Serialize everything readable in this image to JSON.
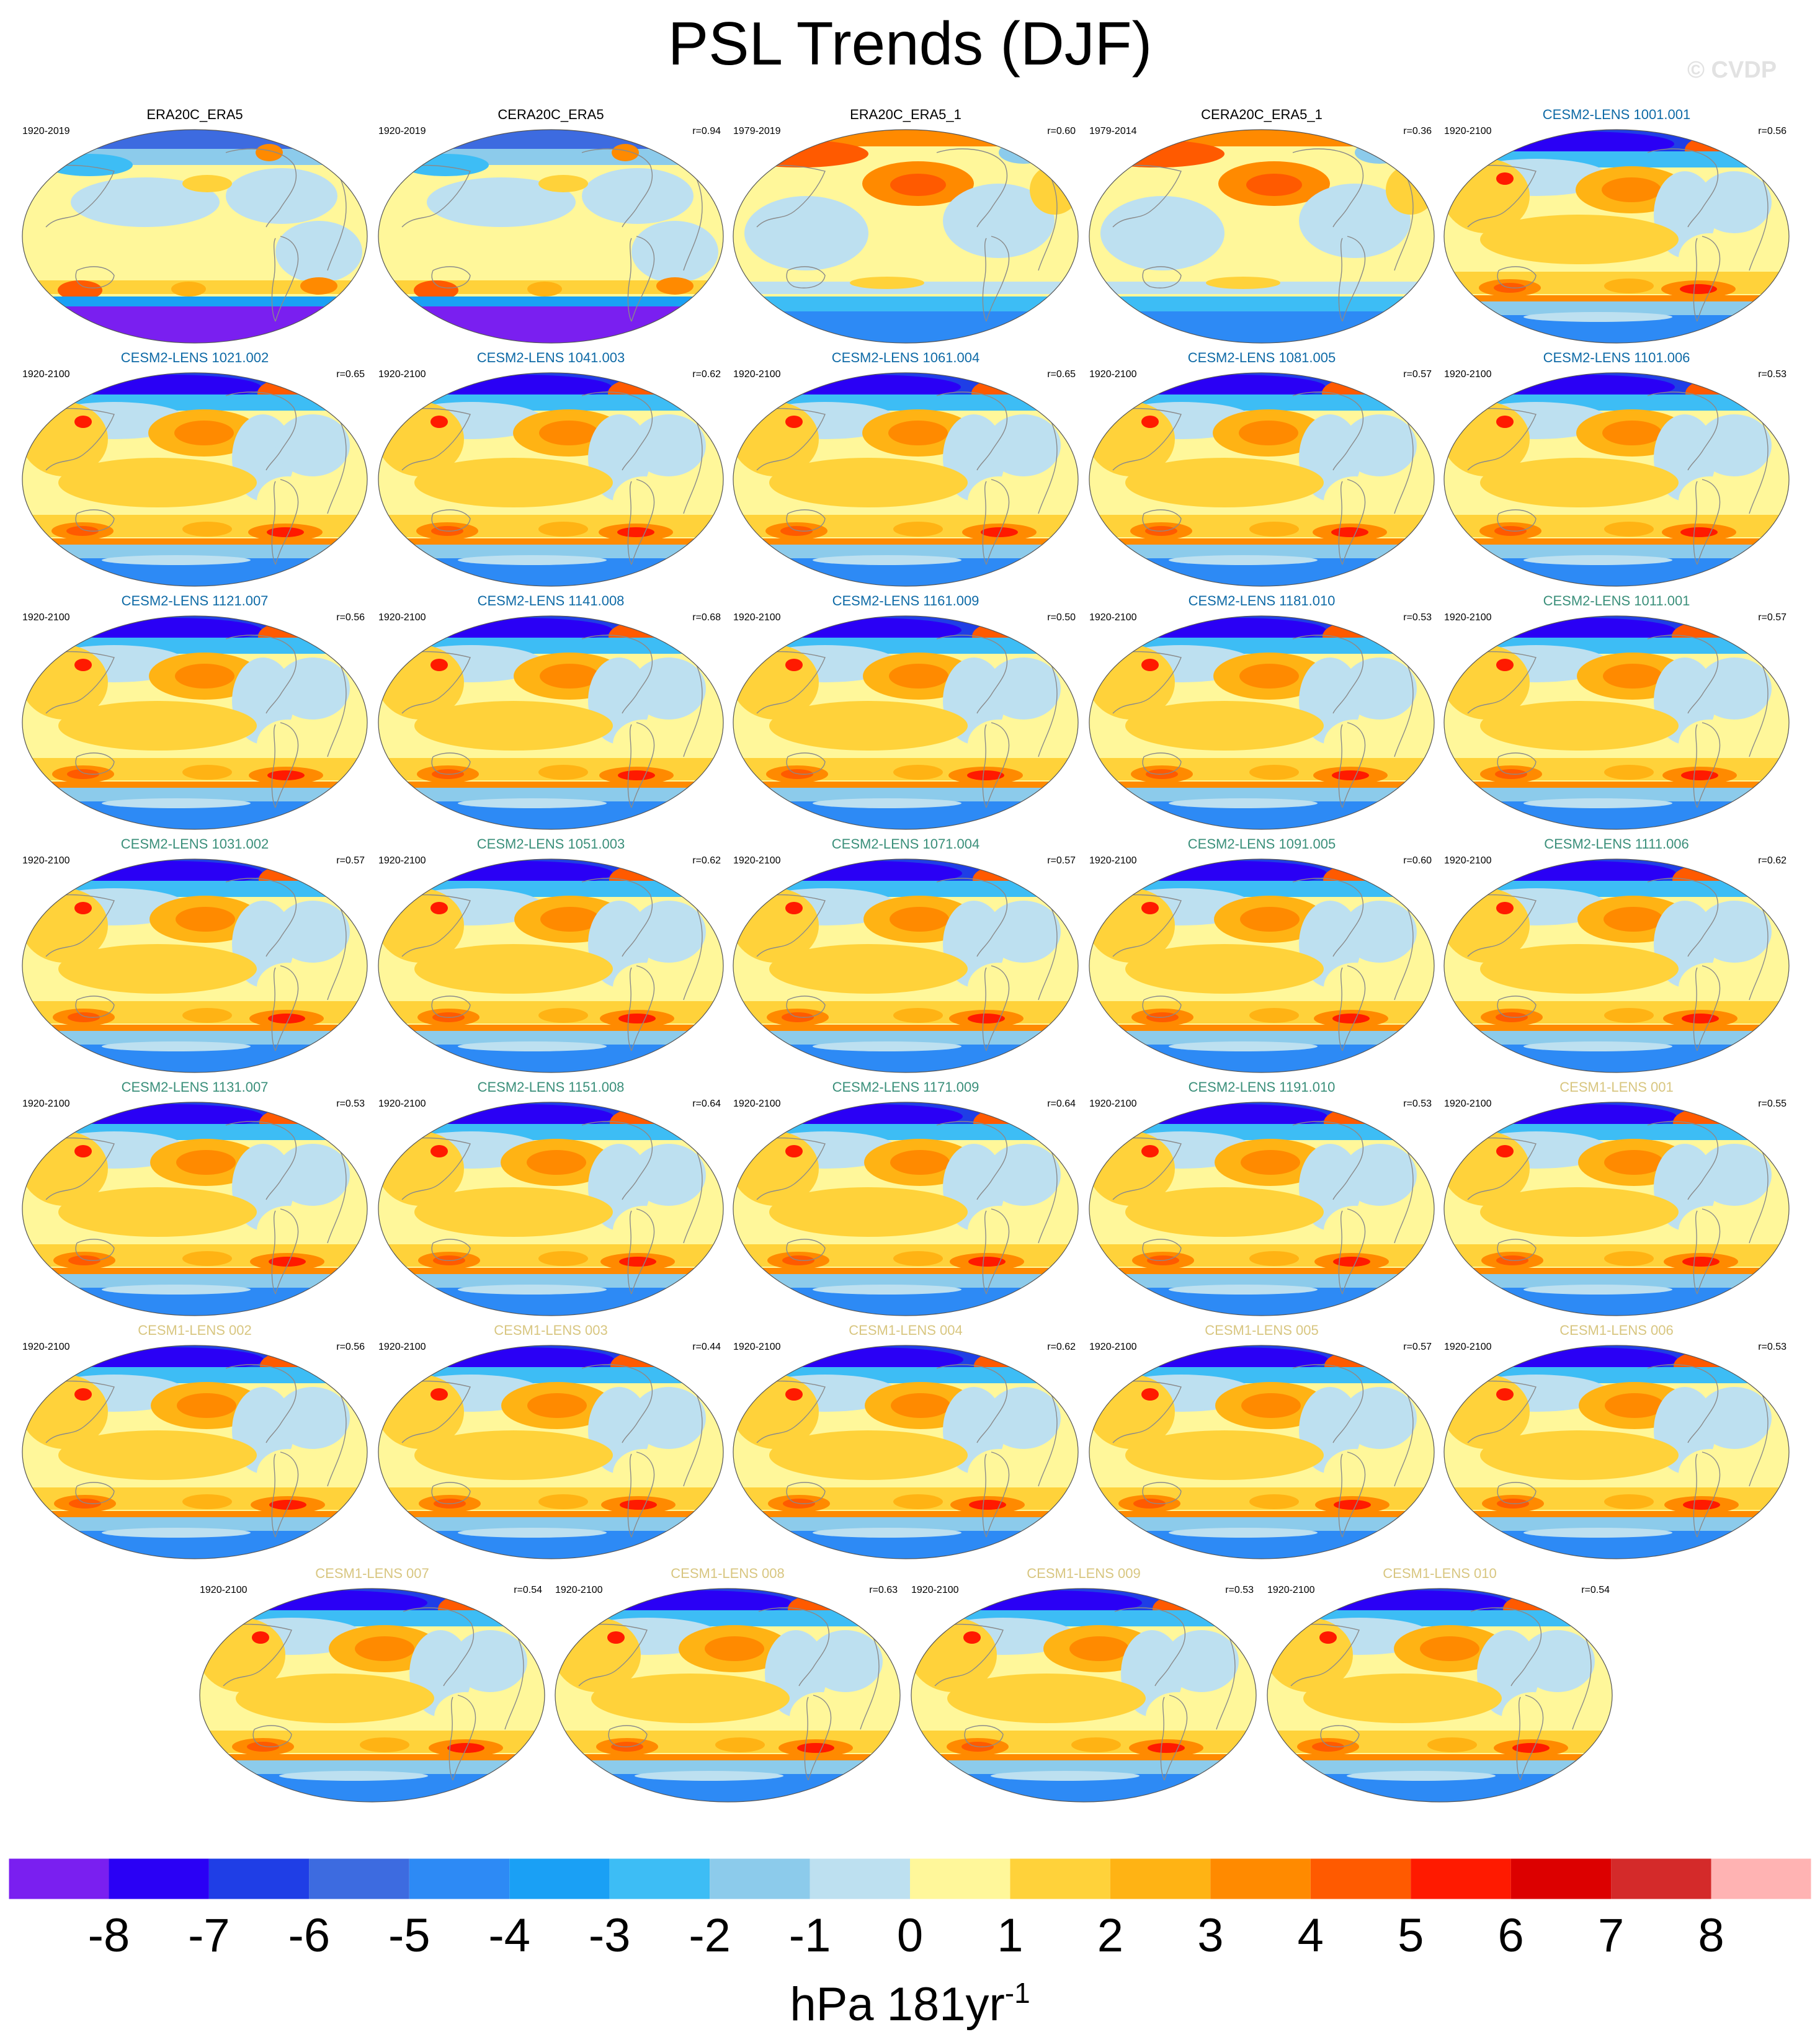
{
  "title": "PSL Trends (DJF)",
  "watermark": "© CVDP",
  "colors": {
    "obs_title": "#000000",
    "cesm2_smbb": "#0e6aa6",
    "cesm2_cmip6": "#3a8f7a",
    "cesm1": "#d8c680",
    "ocean_base": "#fff79a",
    "coastline": "#8a8a8a"
  },
  "panels": [
    {
      "title": "ERA20C_ERA5",
      "period": "1920-2019",
      "r": "",
      "group": "obs",
      "style": "obs_a"
    },
    {
      "title": "CERA20C_ERA5",
      "period": "1920-2019",
      "r": "r=0.94",
      "group": "obs",
      "style": "obs_a"
    },
    {
      "title": "ERA20C_ERA5_1",
      "period": "1979-2019",
      "r": "r=0.60",
      "group": "obs",
      "style": "obs_b"
    },
    {
      "title": "CERA20C_ERA5_1",
      "period": "1979-2014",
      "r": "r=0.36",
      "group": "obs",
      "style": "obs_b"
    },
    {
      "title": "CESM2-LENS 1001.001",
      "period": "1920-2100",
      "r": "r=0.56",
      "group": "cesm2_smbb",
      "style": "model"
    },
    {
      "title": "CESM2-LENS 1021.002",
      "period": "1920-2100",
      "r": "r=0.65",
      "group": "cesm2_smbb",
      "style": "model"
    },
    {
      "title": "CESM2-LENS 1041.003",
      "period": "1920-2100",
      "r": "r=0.62",
      "group": "cesm2_smbb",
      "style": "model"
    },
    {
      "title": "CESM2-LENS 1061.004",
      "period": "1920-2100",
      "r": "r=0.65",
      "group": "cesm2_smbb",
      "style": "model"
    },
    {
      "title": "CESM2-LENS 1081.005",
      "period": "1920-2100",
      "r": "r=0.57",
      "group": "cesm2_smbb",
      "style": "model"
    },
    {
      "title": "CESM2-LENS 1101.006",
      "period": "1920-2100",
      "r": "r=0.53",
      "group": "cesm2_smbb",
      "style": "model"
    },
    {
      "title": "CESM2-LENS 1121.007",
      "period": "1920-2100",
      "r": "r=0.56",
      "group": "cesm2_smbb",
      "style": "model"
    },
    {
      "title": "CESM2-LENS 1141.008",
      "period": "1920-2100",
      "r": "r=0.68",
      "group": "cesm2_smbb",
      "style": "model"
    },
    {
      "title": "CESM2-LENS 1161.009",
      "period": "1920-2100",
      "r": "r=0.50",
      "group": "cesm2_smbb",
      "style": "model"
    },
    {
      "title": "CESM2-LENS 1181.010",
      "period": "1920-2100",
      "r": "r=0.53",
      "group": "cesm2_smbb",
      "style": "model"
    },
    {
      "title": "CESM2-LENS 1011.001",
      "period": "1920-2100",
      "r": "r=0.57",
      "group": "cesm2_cmip6",
      "style": "model"
    },
    {
      "title": "CESM2-LENS 1031.002",
      "period": "1920-2100",
      "r": "r=0.57",
      "group": "cesm2_cmip6",
      "style": "model"
    },
    {
      "title": "CESM2-LENS 1051.003",
      "period": "1920-2100",
      "r": "r=0.62",
      "group": "cesm2_cmip6",
      "style": "model"
    },
    {
      "title": "CESM2-LENS 1071.004",
      "period": "1920-2100",
      "r": "r=0.57",
      "group": "cesm2_cmip6",
      "style": "model"
    },
    {
      "title": "CESM2-LENS 1091.005",
      "period": "1920-2100",
      "r": "r=0.60",
      "group": "cesm2_cmip6",
      "style": "model"
    },
    {
      "title": "CESM2-LENS 1111.006",
      "period": "1920-2100",
      "r": "r=0.62",
      "group": "cesm2_cmip6",
      "style": "model"
    },
    {
      "title": "CESM2-LENS 1131.007",
      "period": "1920-2100",
      "r": "r=0.53",
      "group": "cesm2_cmip6",
      "style": "model"
    },
    {
      "title": "CESM2-LENS 1151.008",
      "period": "1920-2100",
      "r": "r=0.64",
      "group": "cesm2_cmip6",
      "style": "model"
    },
    {
      "title": "CESM2-LENS 1171.009",
      "period": "1920-2100",
      "r": "r=0.64",
      "group": "cesm2_cmip6",
      "style": "model"
    },
    {
      "title": "CESM2-LENS 1191.010",
      "period": "1920-2100",
      "r": "r=0.53",
      "group": "cesm2_cmip6",
      "style": "model"
    },
    {
      "title": "CESM1-LENS 001",
      "period": "1920-2100",
      "r": "r=0.55",
      "group": "cesm1",
      "style": "model"
    },
    {
      "title": "CESM1-LENS 002",
      "period": "1920-2100",
      "r": "r=0.56",
      "group": "cesm1",
      "style": "model"
    },
    {
      "title": "CESM1-LENS 003",
      "period": "1920-2100",
      "r": "r=0.44",
      "group": "cesm1",
      "style": "model"
    },
    {
      "title": "CESM1-LENS 004",
      "period": "1920-2100",
      "r": "r=0.62",
      "group": "cesm1",
      "style": "model"
    },
    {
      "title": "CESM1-LENS 005",
      "period": "1920-2100",
      "r": "r=0.57",
      "group": "cesm1",
      "style": "model"
    },
    {
      "title": "CESM1-LENS 006",
      "period": "1920-2100",
      "r": "r=0.53",
      "group": "cesm1",
      "style": "model"
    },
    {
      "title": "CESM1-LENS 007",
      "period": "1920-2100",
      "r": "r=0.54",
      "group": "cesm1",
      "style": "model"
    },
    {
      "title": "CESM1-LENS 008",
      "period": "1920-2100",
      "r": "r=0.63",
      "group": "cesm1",
      "style": "model"
    },
    {
      "title": "CESM1-LENS 009",
      "period": "1920-2100",
      "r": "r=0.53",
      "group": "cesm1",
      "style": "model"
    },
    {
      "title": "CESM1-LENS 010",
      "period": "1920-2100",
      "r": "r=0.54",
      "group": "cesm1",
      "style": "model"
    }
  ],
  "colorbar": {
    "colors": [
      "#7a1ff0",
      "#2a00f5",
      "#1f3ee6",
      "#3d6be0",
      "#2d8af5",
      "#1aa0f5",
      "#3dbdf5",
      "#8ccbeb",
      "#bde0f0",
      "#fff79a",
      "#ffd23a",
      "#ffb314",
      "#ff8a00",
      "#ff5a00",
      "#ff1a00",
      "#dc0000",
      "#d42a2a",
      "#ffb3b3"
    ],
    "labels": [
      "-8",
      "-7",
      "-6",
      "-5",
      "-4",
      "-3",
      "-2",
      "-1",
      "0",
      "1",
      "2",
      "3",
      "4",
      "5",
      "6",
      "7",
      "8"
    ],
    "unit_main": "hPa 181yr",
    "unit_exp": "-1"
  }
}
